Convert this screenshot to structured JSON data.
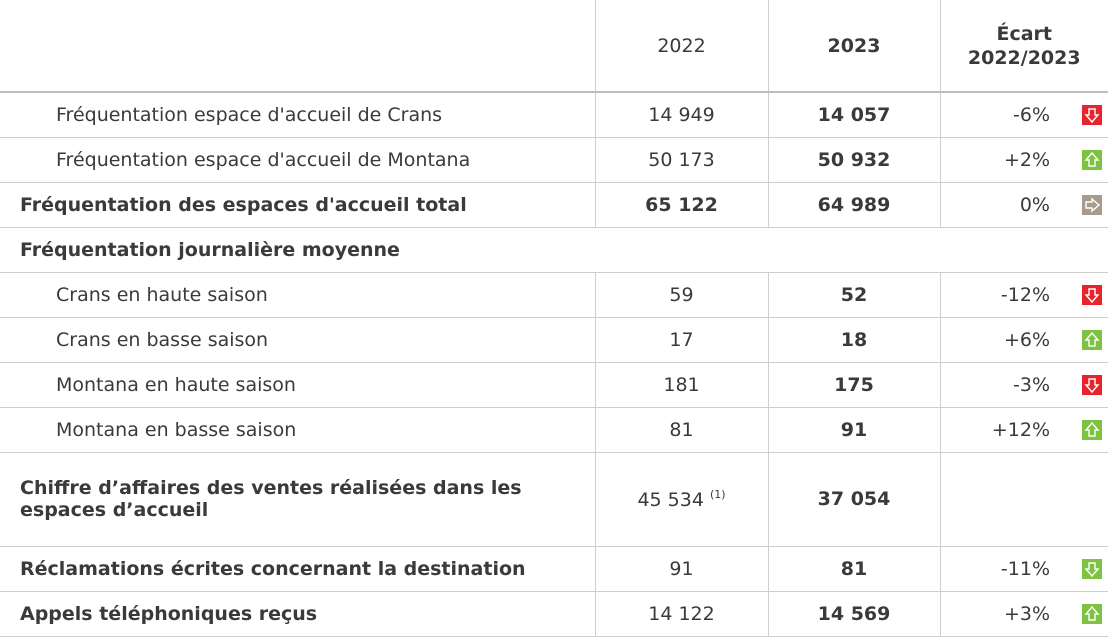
{
  "table": {
    "header": [
      "2022",
      "2023",
      "Écart 2022/2023"
    ],
    "rows": [
      {
        "label": "Fréquentation espace d'accueil de Crans",
        "y2022": "14 949",
        "y2023": "14 057",
        "ecart": "-6%"
      },
      {
        "label": "Fréquentation espace d'accueil de Montana",
        "y2022": "50 173",
        "y2023": "50 932",
        "ecart": "+2%"
      },
      {
        "label": "Fréquentation des espaces d'accueil total",
        "y2022": "65 122",
        "y2023": "64 989",
        "ecart": "0%"
      },
      {
        "label": "Fréquentation journalière moyenne"
      },
      {
        "label": "Crans en haute saison",
        "y2022": "59",
        "y2023": "52",
        "ecart": "-12%"
      },
      {
        "label": "Crans en basse saison",
        "y2022": "17",
        "y2023": "18",
        "ecart": "+6%"
      },
      {
        "label": "Montana en haute saison",
        "y2022": "181",
        "y2023": "175",
        "ecart": "-3%"
      },
      {
        "label": "Montana en basse saison",
        "y2022": "81",
        "y2023": "91",
        "ecart": "+12%"
      },
      {
        "label": "Chiffre d’affaires des ventes réalisées dans les espaces d’accueil",
        "y2022": "45 534",
        "note": "(1)",
        "y2023": "37 054"
      },
      {
        "label": "Réclamations écrites concernant la destination",
        "y2022": "91",
        "y2023": "81",
        "ecart": "-11%"
      },
      {
        "label": "Appels téléphoniques reçus",
        "y2022": "14 122",
        "y2023": "14 569",
        "ecart": "+3%"
      }
    ]
  }
}
